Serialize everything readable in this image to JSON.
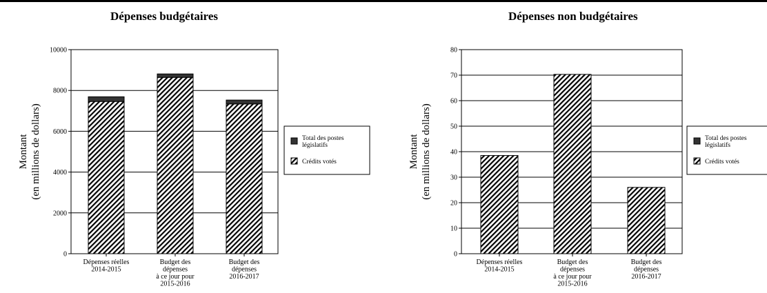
{
  "chart_data": [
    {
      "type": "bar",
      "stacked": true,
      "title": "Dépenses budgétaires",
      "ylabel_line1": "Montant",
      "ylabel_line2": "(en millions de dollars)",
      "ylim": [
        0,
        10000
      ],
      "yticks": [
        0,
        2000,
        4000,
        6000,
        8000,
        10000
      ],
      "grid": true,
      "legend_position": "right",
      "categories": [
        [
          "Dépenses réelles",
          "2014-2015"
        ],
        [
          "Budget des",
          "dépenses",
          "à ce jour pour",
          "2015-2016"
        ],
        [
          "Budget des",
          "dépenses",
          "2016-2017"
        ]
      ],
      "series": [
        {
          "name": "Crédits votés",
          "pattern": "diagonal-hatch",
          "color": "#000000",
          "values": [
            7460,
            8640,
            7340
          ]
        },
        {
          "name": "Total des postes législatifs",
          "pattern": "solid",
          "color": "#333333",
          "values": [
            230,
            170,
            190
          ]
        }
      ],
      "legend": [
        "Total des postes législatifs",
        "Crédits votés"
      ]
    },
    {
      "type": "bar",
      "stacked": true,
      "title": "Dépenses non budgétaires",
      "ylabel_line1": "Montant",
      "ylabel_line2": "(en millions de dollars)",
      "ylim": [
        0,
        80
      ],
      "yticks": [
        0,
        10,
        20,
        30,
        40,
        50,
        60,
        70,
        80
      ],
      "grid": true,
      "legend_position": "right",
      "categories": [
        [
          "Dépenses réelles",
          "2014-2015"
        ],
        [
          "Budget des",
          "dépenses",
          "à ce jour pour",
          "2015-2016"
        ],
        [
          "Budget des",
          "dépenses",
          "2016-2017"
        ]
      ],
      "series": [
        {
          "name": "Crédits votés",
          "pattern": "diagonal-hatch",
          "color": "#000000",
          "values": [
            38.5,
            70.3,
            26
          ]
        },
        {
          "name": "Total des postes législatifs",
          "pattern": "solid",
          "color": "#333333",
          "values": [
            0,
            0,
            0
          ]
        }
      ],
      "legend": [
        "Total des postes législatifs",
        "Crédits votés"
      ]
    }
  ]
}
